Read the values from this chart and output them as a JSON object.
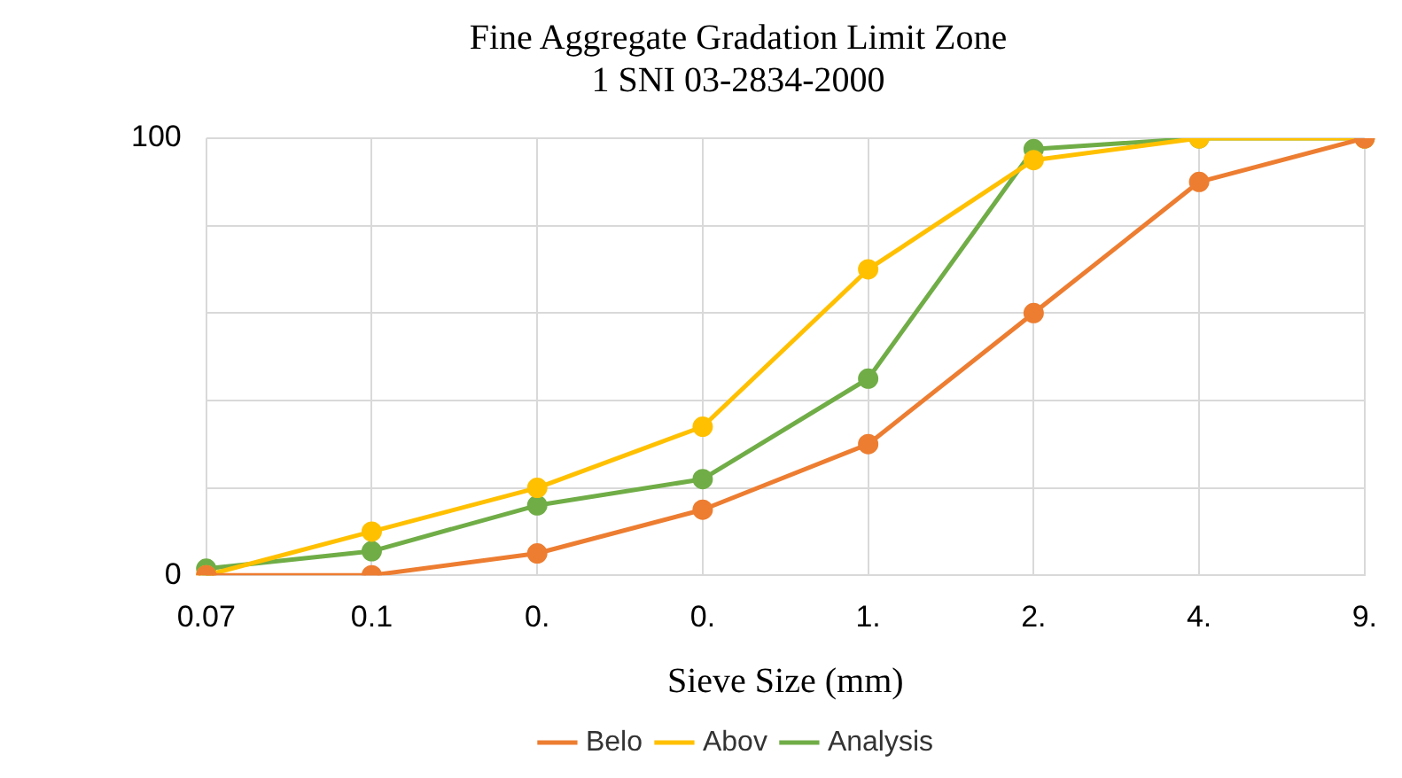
{
  "chart_data": {
    "type": "line",
    "title": [
      "Fine Aggregate Gradation Limit Zone",
      "1 SNI 03-2834-2000"
    ],
    "xlabel": "Sieve Size (mm)",
    "categories": [
      "0.07",
      "0.1",
      "0.",
      "0.",
      "1.",
      "2.",
      "4.",
      "9."
    ],
    "series": [
      {
        "name": "Belo",
        "color": "#ed7d31",
        "values": [
          0,
          0,
          5,
          15,
          30,
          60,
          90,
          100
        ]
      },
      {
        "name": "Abov",
        "color": "#ffc000",
        "values": [
          0,
          10,
          20,
          34,
          70,
          95,
          100,
          100
        ]
      },
      {
        "name": "Analysis",
        "color": "#70ad47",
        "values": [
          1.5,
          5.5,
          16,
          22,
          45,
          97.5,
          100,
          100
        ]
      }
    ],
    "ylim": [
      0,
      100
    ],
    "yticks": [
      0,
      {
        "value": 20,
        "label": null
      },
      {
        "value": 40,
        "label": null
      },
      {
        "value": 60,
        "label": null
      },
      {
        "value": 80,
        "label": null
      },
      100
    ],
    "grid": true,
    "legend": "bottom",
    "marker": "circle",
    "line_style": "solid"
  }
}
